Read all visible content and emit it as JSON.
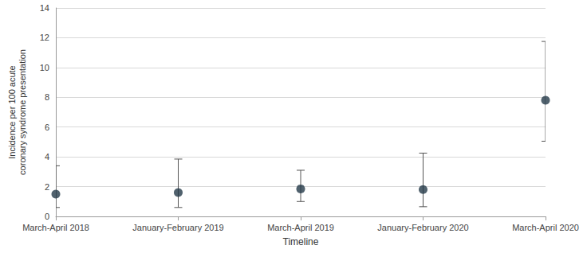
{
  "chart_data": {
    "type": "scatter",
    "categories": [
      "March-April 2018",
      "January-February 2019",
      "March-April 2019",
      "January-February 2020",
      "March-April 2020"
    ],
    "values": [
      1.5,
      1.6,
      1.85,
      1.8,
      7.8
    ],
    "error_lower": [
      0.6,
      0.6,
      1.0,
      0.65,
      5.05
    ],
    "error_upper": [
      3.4,
      3.85,
      3.1,
      4.25,
      11.75
    ],
    "xlabel": "Timeline",
    "ylabel": "Incidence per 100 acute coronary syndrome presentation",
    "ylim": [
      0,
      14
    ],
    "yticks": [
      0,
      2,
      4,
      6,
      8,
      10,
      12,
      14
    ],
    "grid": true,
    "color": "#243a48",
    "marker": "circle"
  }
}
